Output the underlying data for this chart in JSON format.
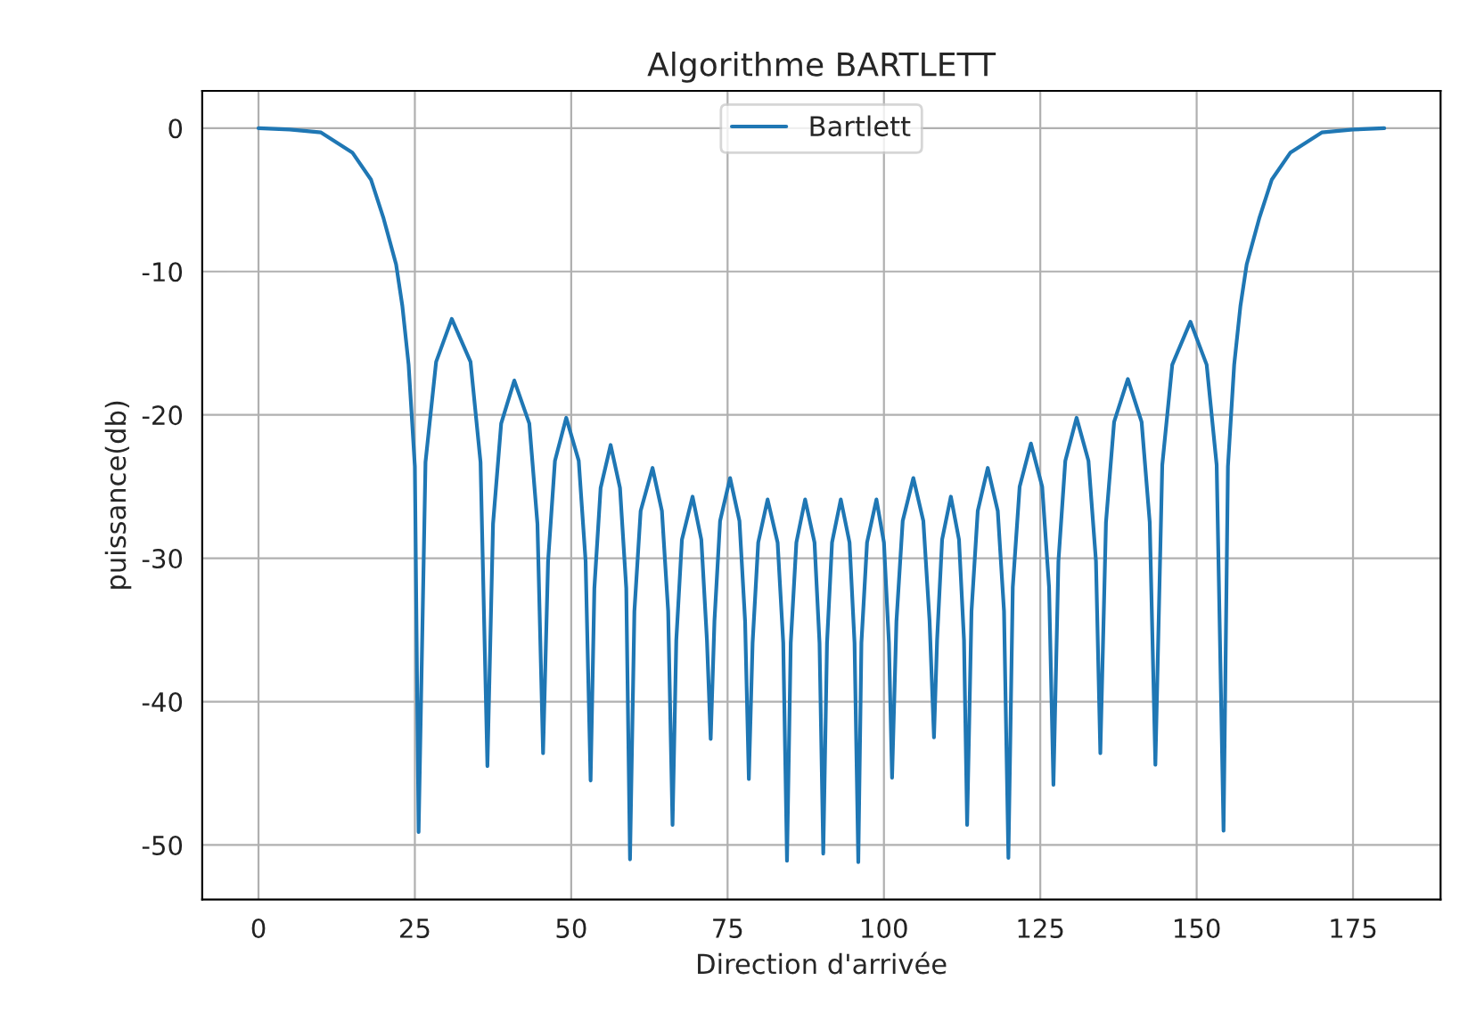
{
  "chart_data": {
    "type": "line",
    "title": "Algorithme BARTLETT",
    "xlabel": "Direction d'arrivée",
    "ylabel": "puissance(db)",
    "xlim": [
      -9,
      189
    ],
    "ylim": [
      -53.8,
      2.6
    ],
    "xticks": [
      0,
      25,
      50,
      75,
      100,
      125,
      150,
      175
    ],
    "yticks": [
      0,
      -10,
      -20,
      -30,
      -40,
      -50
    ],
    "grid": true,
    "legend": "top",
    "marker": "none",
    "line_style": "solid",
    "series": [
      {
        "name": "Bartlett",
        "color": "#1f77b4",
        "x": [
          0,
          5,
          10,
          15,
          18,
          20,
          22,
          23,
          24,
          25,
          25.6,
          26.7,
          28.4,
          30.9,
          33.9,
          35.5,
          36.6,
          37.5,
          38.8,
          40.9,
          43.3,
          44.6,
          45.5,
          46.3,
          47.4,
          49.2,
          51.2,
          52.3,
          53.1,
          53.7,
          54.7,
          56.3,
          57.8,
          58.8,
          59.4,
          60.1,
          61.1,
          63.0,
          64.5,
          65.5,
          66.2,
          66.8,
          67.7,
          69.4,
          70.8,
          71.7,
          72.3,
          72.9,
          73.8,
          75.4,
          76.9,
          77.8,
          78.4,
          79.0,
          79.9,
          81.4,
          83.0,
          83.9,
          84.5,
          85.1,
          86.0,
          87.4,
          88.9,
          89.7,
          90.3,
          90.9,
          91.7,
          93.1,
          94.5,
          95.3,
          95.9,
          96.4,
          97.3,
          98.8,
          100.0,
          100.8,
          101.3,
          102.0,
          103.0,
          104.7,
          106.3,
          107.3,
          108.0,
          108.5,
          109.3,
          110.7,
          112.0,
          112.8,
          113.3,
          114.0,
          115.0,
          116.6,
          118.2,
          119.2,
          119.9,
          120.6,
          121.7,
          123.5,
          125.3,
          126.4,
          127.1,
          127.9,
          129.0,
          130.8,
          132.7,
          133.9,
          134.6,
          135.5,
          136.8,
          139.0,
          141.2,
          142.5,
          143.4,
          144.5,
          146.1,
          149.0,
          151.6,
          153.2,
          154.3,
          155,
          156,
          157,
          158,
          160,
          162,
          165,
          170,
          175,
          180
        ],
        "values": [
          0,
          -0.1,
          -0.3,
          -1.7,
          -3.6,
          -6.3,
          -9.5,
          -12.4,
          -16.5,
          -23.6,
          -49.1,
          -23.3,
          -16.3,
          -13.3,
          -16.3,
          -23.3,
          -44.5,
          -27.6,
          -20.6,
          -17.6,
          -20.6,
          -27.6,
          -43.6,
          -30.2,
          -23.2,
          -20.2,
          -23.2,
          -30.2,
          -45.5,
          -32.1,
          -25.1,
          -22.1,
          -25.1,
          -32.1,
          -51.0,
          -33.7,
          -26.7,
          -23.7,
          -26.7,
          -33.7,
          -48.6,
          -35.7,
          -28.7,
          -25.7,
          -28.7,
          -35.7,
          -42.6,
          -34.4,
          -27.4,
          -24.4,
          -27.4,
          -34.4,
          -45.4,
          -35.9,
          -28.9,
          -25.9,
          -28.9,
          -35.9,
          -51.1,
          -35.9,
          -28.9,
          -25.9,
          -28.9,
          -35.9,
          -50.6,
          -35.9,
          -28.9,
          -25.9,
          -28.9,
          -35.9,
          -51.2,
          -35.9,
          -28.9,
          -25.9,
          -28.9,
          -35.9,
          -45.3,
          -34.4,
          -27.4,
          -24.4,
          -27.4,
          -34.4,
          -42.5,
          -35.7,
          -28.7,
          -25.7,
          -28.7,
          -35.7,
          -48.6,
          -33.7,
          -26.7,
          -23.7,
          -26.7,
          -33.7,
          -50.9,
          -32.0,
          -25.0,
          -22.0,
          -25.0,
          -32.0,
          -45.8,
          -30.2,
          -23.2,
          -20.2,
          -23.2,
          -30.2,
          -43.6,
          -27.5,
          -20.5,
          -17.5,
          -20.5,
          -27.5,
          -44.4,
          -23.5,
          -16.5,
          -13.5,
          -16.5,
          -23.5,
          -49.0,
          -23.6,
          -16.5,
          -12.4,
          -9.5,
          -6.3,
          -3.6,
          -1.7,
          -0.3,
          -0.1,
          0
        ]
      }
    ]
  }
}
